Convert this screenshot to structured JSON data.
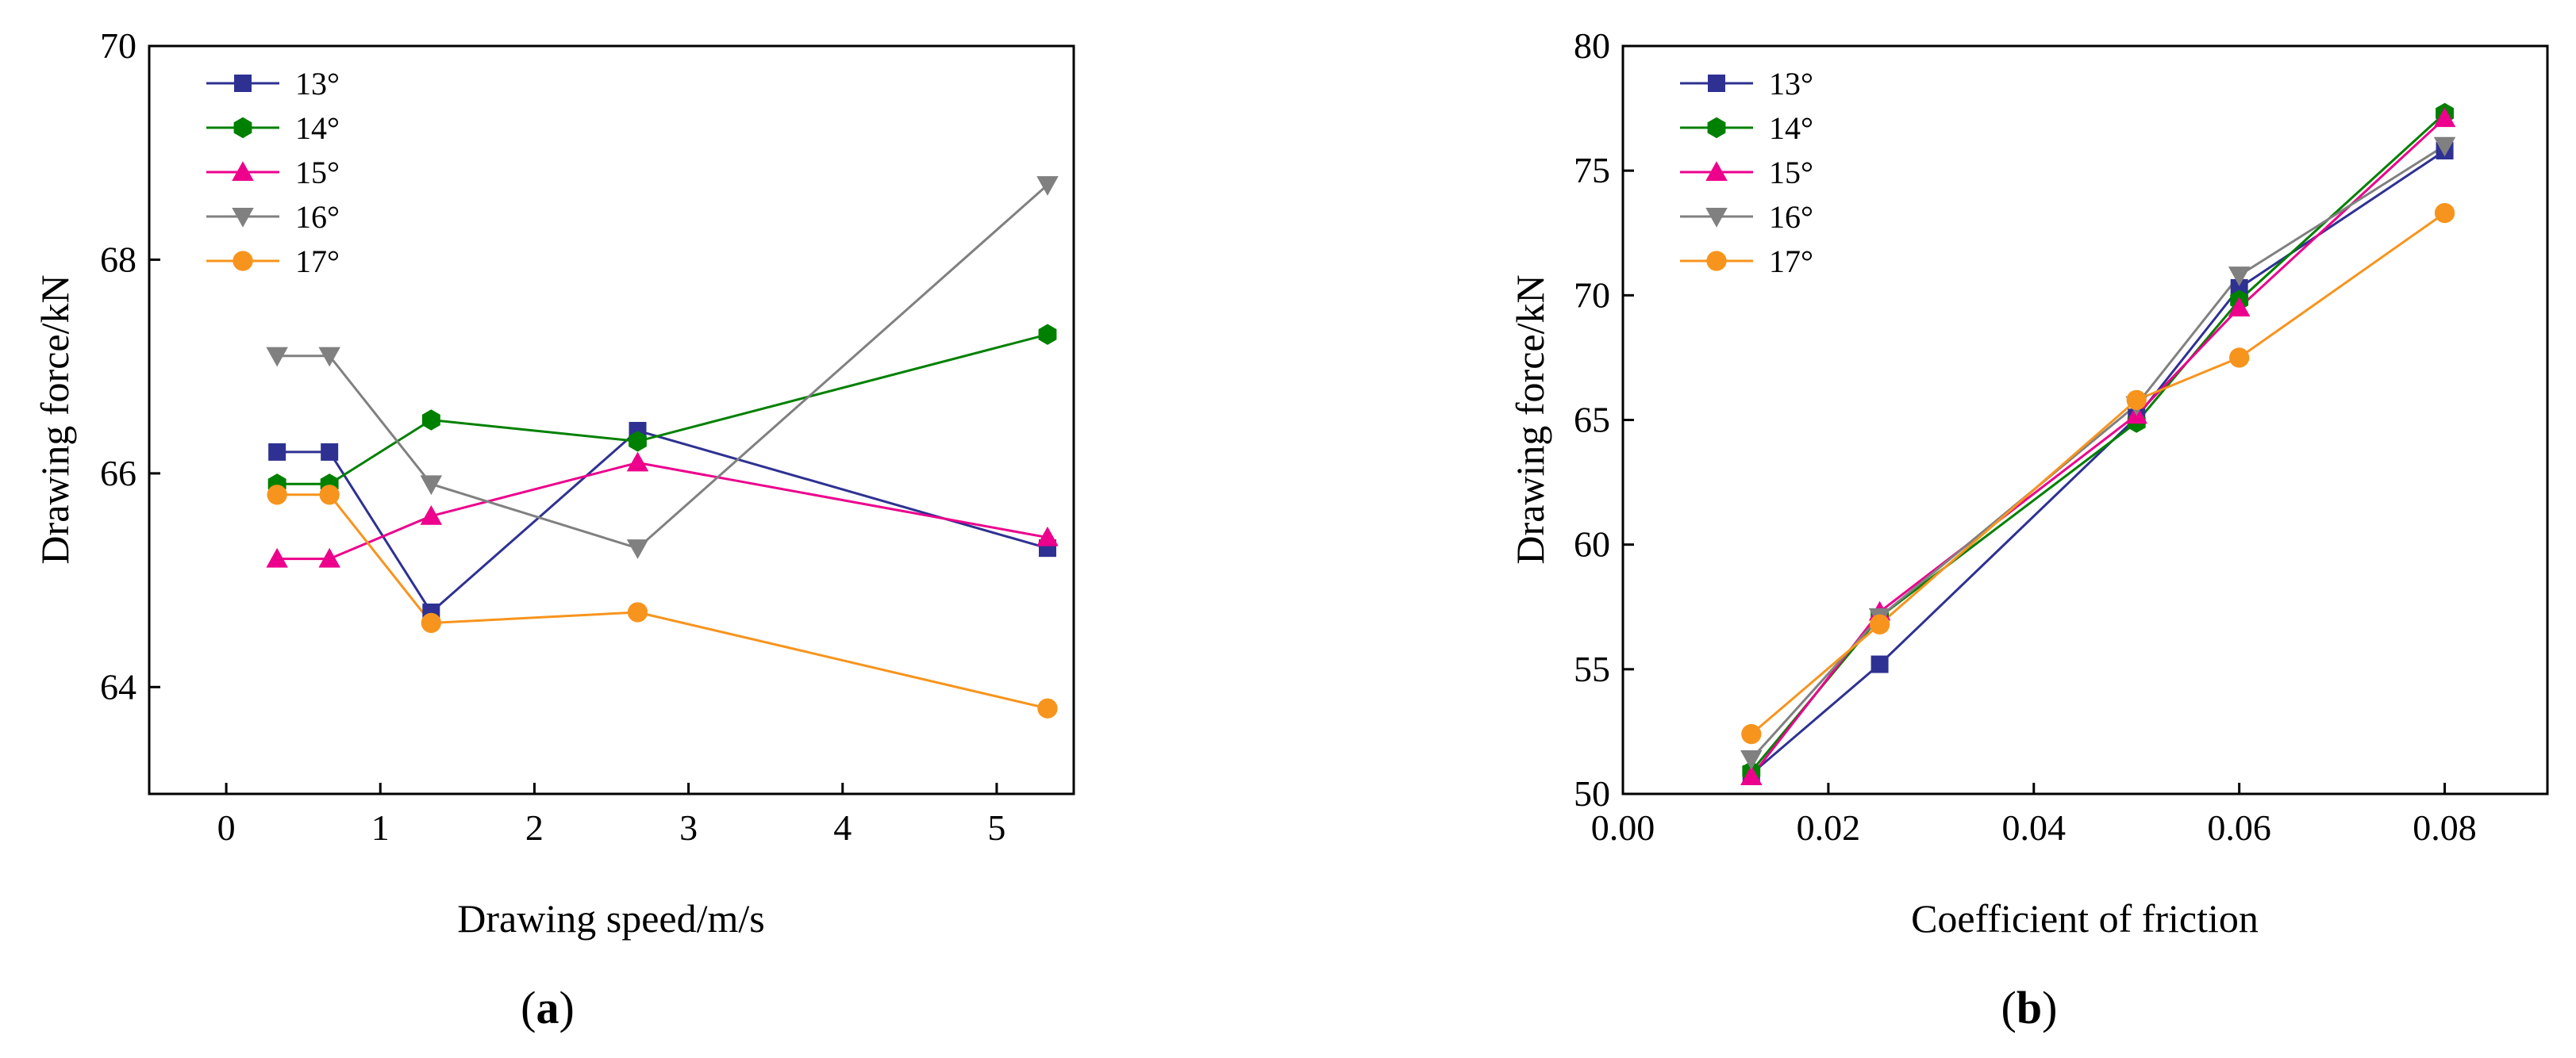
{
  "chart_data": [
    {
      "type": "line",
      "panel_label": "a",
      "xlabel": "Drawing speed/m/s",
      "ylabel": "Drawing force/kN",
      "xlim": [
        -0.5,
        5.5
      ],
      "ylim": [
        63,
        70
      ],
      "xticks": [
        0,
        1,
        2,
        3,
        4,
        5
      ],
      "xtick_labels": [
        "0",
        "1",
        "2",
        "3",
        "4",
        "5"
      ],
      "yticks": [
        64,
        66,
        68,
        70
      ],
      "ytick_labels": [
        "64",
        "66",
        "68",
        "70"
      ],
      "legend_position": "top-left",
      "x": [
        0.33,
        0.67,
        1.33,
        2.67,
        5.33
      ],
      "series": [
        {
          "name": "13°",
          "color": "#2e3192",
          "marker": "square",
          "values": [
            66.2,
            66.2,
            64.7,
            66.4,
            65.3
          ]
        },
        {
          "name": "14°",
          "color": "#008000",
          "marker": "hexagon",
          "values": [
            65.9,
            65.9,
            66.5,
            66.3,
            67.3
          ]
        },
        {
          "name": "15°",
          "color": "#ec008c",
          "marker": "triangle-up",
          "values": [
            65.2,
            65.2,
            65.6,
            66.1,
            65.4
          ]
        },
        {
          "name": "16°",
          "color": "#808080",
          "marker": "triangle-down",
          "values": [
            67.1,
            67.1,
            65.9,
            65.3,
            68.7
          ]
        },
        {
          "name": "17°",
          "color": "#f7941d",
          "marker": "circle",
          "values": [
            65.8,
            65.8,
            64.6,
            64.7,
            63.8
          ]
        }
      ]
    },
    {
      "type": "line",
      "panel_label": "b",
      "xlabel": "Coefficient of friction",
      "ylabel": "Drawing force/kN",
      "xlim": [
        0.0,
        0.09
      ],
      "ylim": [
        50,
        80
      ],
      "xticks": [
        0.0,
        0.02,
        0.04,
        0.06,
        0.08
      ],
      "xtick_labels": [
        "0.00",
        "0.02",
        "0.04",
        "0.06",
        "0.08"
      ],
      "yticks": [
        50,
        55,
        60,
        65,
        70,
        75,
        80
      ],
      "ytick_labels": [
        "50",
        "55",
        "60",
        "65",
        "70",
        "75",
        "80"
      ],
      "legend_position": "top-left",
      "x": [
        0.0125,
        0.025,
        0.05,
        0.06,
        0.08
      ],
      "series": [
        {
          "name": "13°",
          "color": "#2e3192",
          "marker": "square",
          "values": [
            50.8,
            55.2,
            65.1,
            70.3,
            75.8
          ]
        },
        {
          "name": "14°",
          "color": "#008000",
          "marker": "hexagon",
          "values": [
            50.9,
            57.1,
            64.9,
            69.8,
            77.3
          ]
        },
        {
          "name": "15°",
          "color": "#ec008c",
          "marker": "triangle-up",
          "values": [
            50.7,
            57.3,
            65.2,
            69.5,
            77.1
          ]
        },
        {
          "name": "16°",
          "color": "#808080",
          "marker": "triangle-down",
          "values": [
            51.4,
            57.1,
            65.6,
            70.8,
            76.0
          ]
        },
        {
          "name": "17°",
          "color": "#f7941d",
          "marker": "circle",
          "values": [
            52.4,
            56.8,
            65.8,
            67.5,
            73.3
          ]
        }
      ]
    }
  ]
}
